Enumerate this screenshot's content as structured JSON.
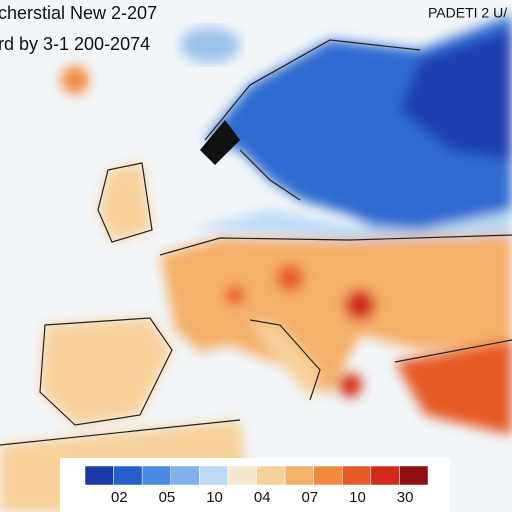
{
  "header": {
    "title": "cherstial New 2-207",
    "subtitle": "rd by 3-1 200-2074",
    "badge": "PADETI 2 U/"
  },
  "legend": {
    "colors": [
      "#1a3aa8",
      "#2360cc",
      "#4a8ae0",
      "#7fb2ec",
      "#bcdaf4",
      "#f6e8cc",
      "#f7d09a",
      "#f5b06a",
      "#f08a3e",
      "#e65a28",
      "#d22a18",
      "#8e0f0f"
    ],
    "labels": [
      "02",
      "05",
      "10",
      "04",
      "07",
      "10",
      "30"
    ]
  }
}
